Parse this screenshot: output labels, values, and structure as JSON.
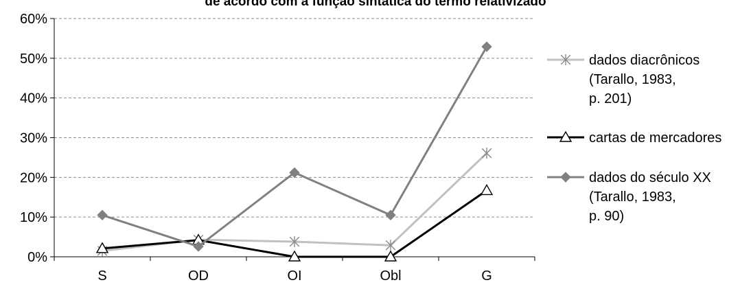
{
  "chart_data": {
    "type": "line",
    "title": "de acordo com a função sintática do termo relativizado",
    "categories": [
      "S",
      "OD",
      "OI",
      "Obl",
      "G"
    ],
    "ylim": [
      0,
      60
    ],
    "y_ticks": [
      0,
      10,
      20,
      30,
      40,
      50,
      60
    ],
    "y_tick_format": "percent",
    "grid": "horizontal-dashed",
    "legend_position": "right",
    "series": [
      {
        "name_lines": [
          "dados diacrônicos",
          "(Tarallo, 1983,",
          "p. 201)"
        ],
        "values": [
          1.5,
          4.3,
          3.8,
          2.9,
          26.1
        ],
        "color": "#c0c0c0",
        "marker": "asterisk"
      },
      {
        "name_lines": [
          "cartas de mercadores"
        ],
        "values": [
          2.1,
          4.2,
          0.0,
          0.0,
          16.7
        ],
        "color": "#000000",
        "marker": "triangle"
      },
      {
        "name_lines": [
          "dados do século XX",
          "(Tarallo, 1983,",
          "p. 90)"
        ],
        "values": [
          10.5,
          2.6,
          21.2,
          10.5,
          52.9
        ],
        "color": "#808080",
        "marker": "diamond"
      }
    ]
  }
}
